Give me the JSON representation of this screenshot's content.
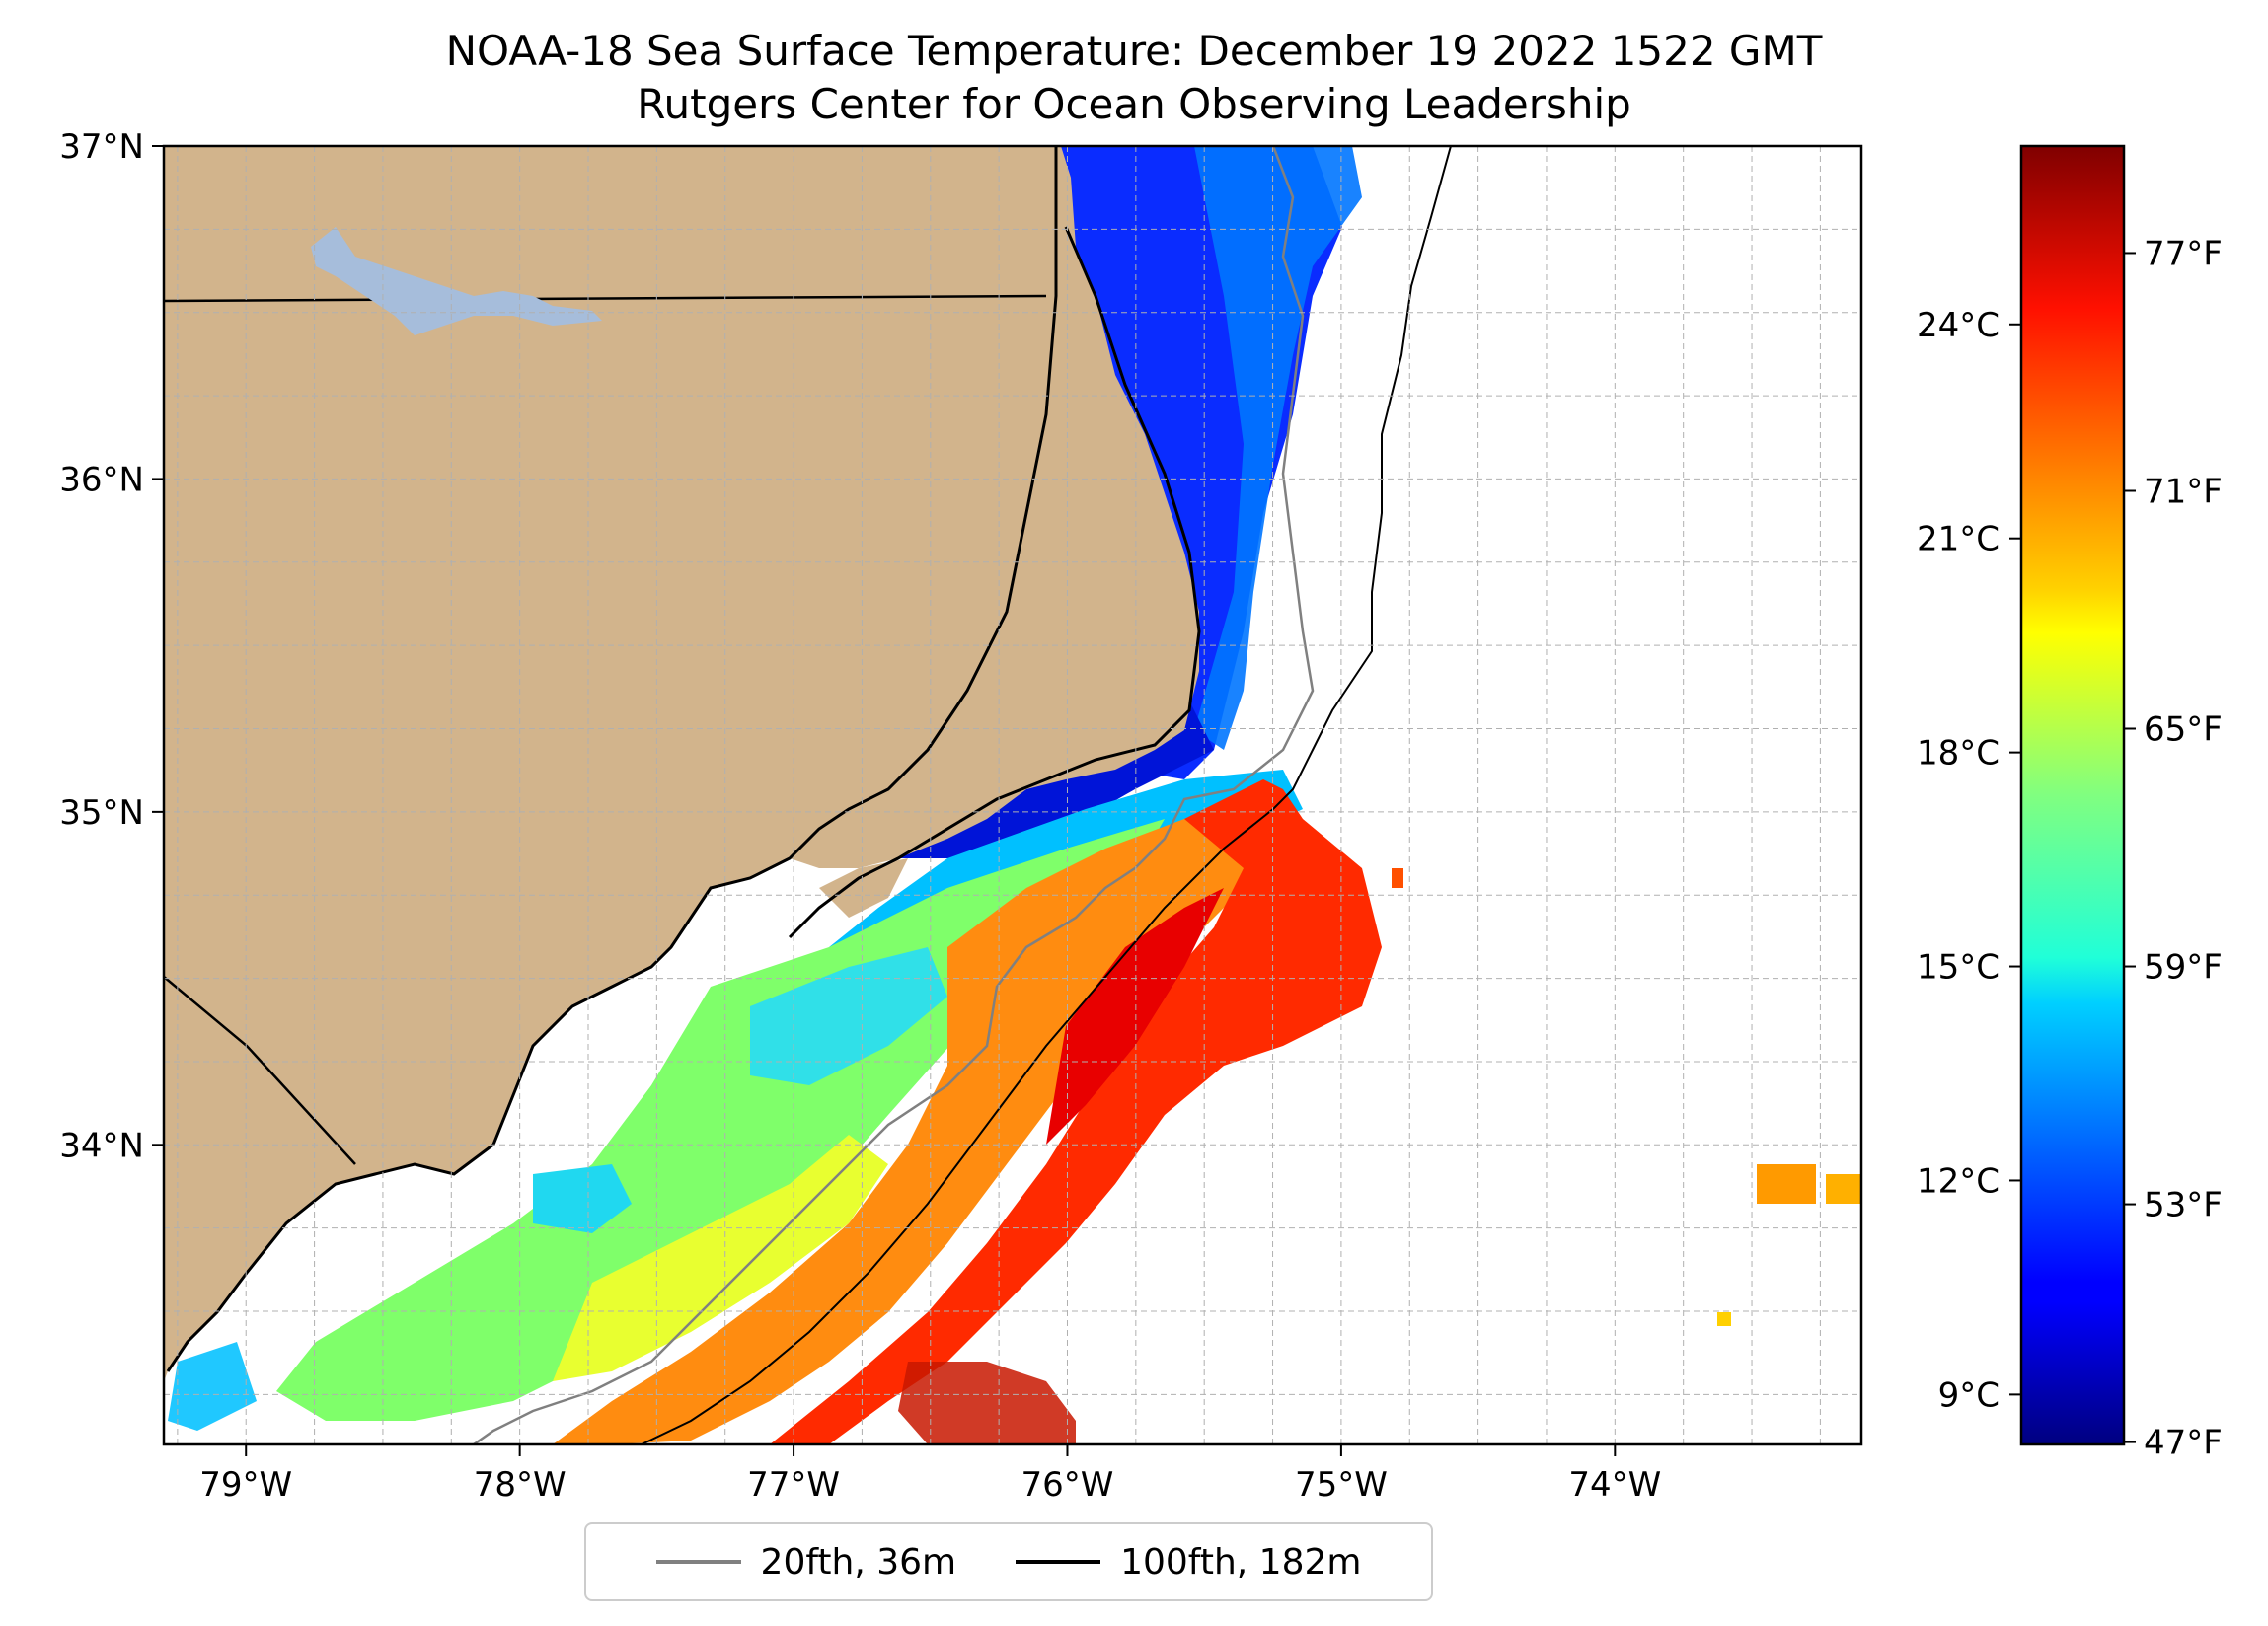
{
  "figure": {
    "title_line1": "NOAA-18 Sea Surface Temperature: December 19 2022 1522 GMT",
    "title_line2": "Rutgers Center for Ocean Observing Leadership"
  },
  "map": {
    "lon_range": [
      -79.3,
      -73.1
    ],
    "lat_range": [
      33.1,
      37.0
    ],
    "lon_ticks": [
      -79,
      -78,
      -77,
      -76,
      -75,
      -74
    ],
    "lon_tick_labels": [
      "79°W",
      "78°W",
      "77°W",
      "76°W",
      "75°W",
      "74°W"
    ],
    "lat_ticks": [
      34,
      35,
      36,
      37
    ],
    "lat_tick_labels": [
      "34°N",
      "35°N",
      "36°N",
      "37°N"
    ],
    "gridlines": true,
    "land_color": "#d2b48c",
    "lake_color": "#a6bddb",
    "isobath_20_color": "#808080",
    "isobath_100_color": "#000000"
  },
  "colorbar": {
    "colormap": "jet",
    "range_c": [
      8.3,
      26.5
    ],
    "celsius_ticks": [
      9,
      12,
      15,
      18,
      21,
      24
    ],
    "celsius_labels": [
      "9°C",
      "12°C",
      "15°C",
      "18°C",
      "21°C",
      "24°C"
    ],
    "fahrenheit_ticks": [
      47,
      53,
      59,
      65,
      71,
      77
    ],
    "fahrenheit_labels": [
      "47°F",
      "53°F",
      "59°F",
      "65°F",
      "71°F",
      "77°F"
    ]
  },
  "legend": {
    "entries": [
      {
        "label": "20fth, 36m",
        "color": "#808080"
      },
      {
        "label": "100fth, 182m",
        "color": "#000000"
      }
    ]
  }
}
